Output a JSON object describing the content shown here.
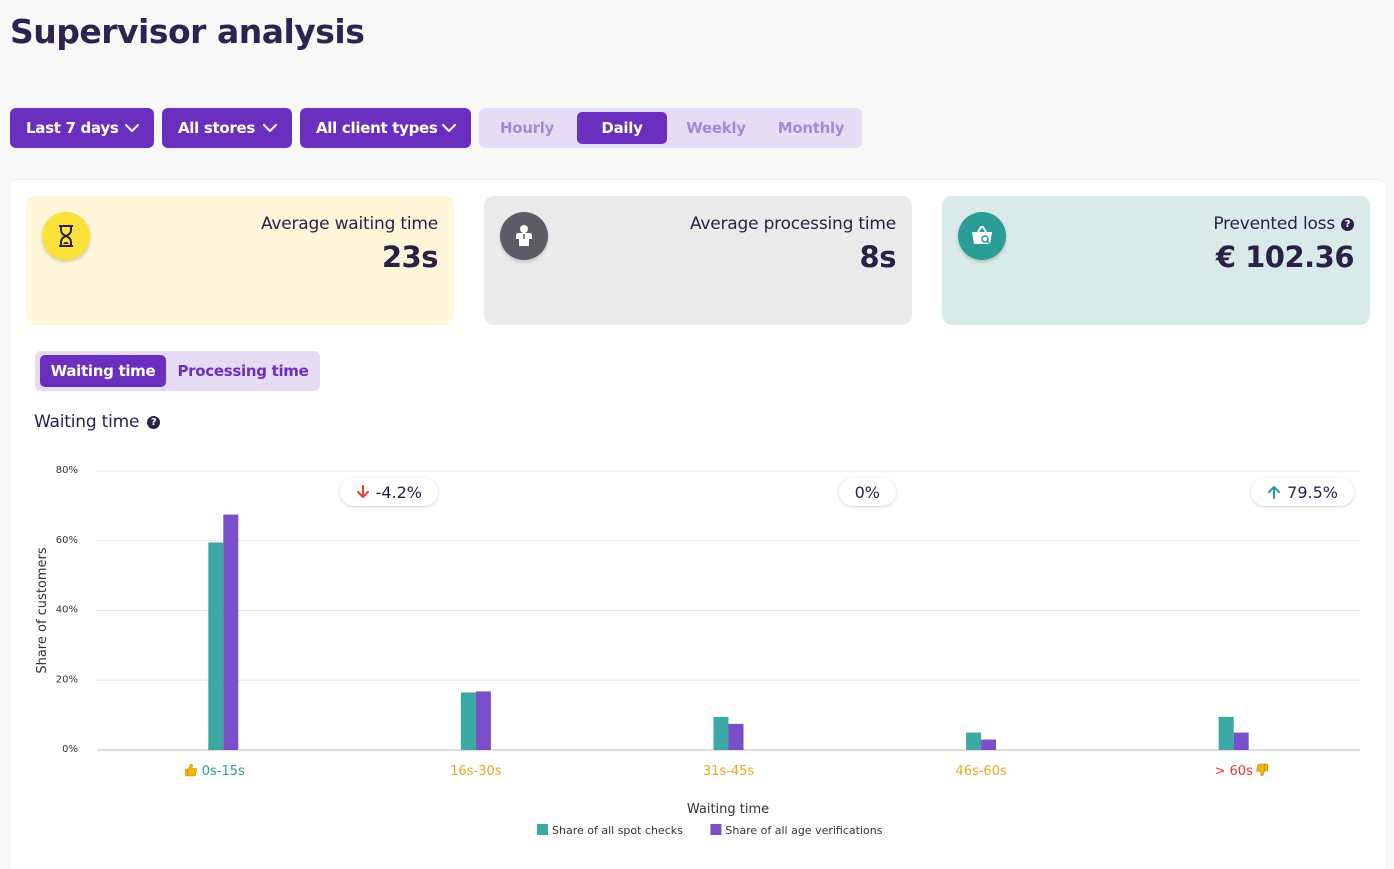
{
  "page": {
    "title": "Supervisor analysis"
  },
  "filters": {
    "date_range": "Last 7 days",
    "stores": "All stores",
    "client_types": "All client types"
  },
  "periods": {
    "hourly": "Hourly",
    "daily": "Daily",
    "weekly": "Weekly",
    "monthly": "Monthly",
    "selected": "Daily"
  },
  "cards": {
    "waiting": {
      "label": "Average waiting time",
      "value": "23s",
      "change": "-4.2%",
      "trend": "down",
      "icon": "hourglass-icon",
      "bg": "#fdf6d8",
      "icon_bg": "#fbe23a"
    },
    "processing": {
      "label": "Average processing time",
      "value": "8s",
      "change": "0%",
      "trend": "none",
      "icon": "person-icon",
      "bg": "#ebebeb",
      "icon_bg": "#5e5a66"
    },
    "loss": {
      "label": "Prevented loss",
      "value": "€ 102.36",
      "change": "79.5%",
      "trend": "up",
      "icon": "basket-icon",
      "bg": "#d8ebe8",
      "icon_bg": "#2a9d97"
    }
  },
  "metric_tabs": {
    "waiting": "Waiting time",
    "processing": "Processing time",
    "selected": "Waiting time"
  },
  "chart_section": {
    "title": "Waiting time"
  },
  "colors": {
    "accent": "#6a2fbf",
    "teal": "#3aa8a3",
    "purple": "#7b4fc9",
    "down": "#e53935",
    "up": "#2a9d97"
  },
  "chart_data": {
    "type": "bar",
    "title": "Waiting time",
    "categories": [
      "0s-15s",
      "16s-30s",
      "31s-45s",
      "46s-60s",
      "> 60s"
    ],
    "category_colors": [
      "#2a9d97",
      "#e8a824",
      "#e8a824",
      "#e8a824",
      "#e53935"
    ],
    "category_icons": [
      "thumbs-up-icon",
      "",
      "",
      "",
      "thumbs-down-icon"
    ],
    "series": [
      {
        "name": "Share of all spot checks",
        "color": "#3aa8a3",
        "values": [
          59.5,
          16.5,
          9.5,
          5,
          9.5
        ]
      },
      {
        "name": "Share of all age verifications",
        "color": "#7b4fc9",
        "values": [
          67.5,
          16.8,
          7.5,
          3,
          5
        ]
      }
    ],
    "xlabel": "Waiting time",
    "ylabel": "Share of customers",
    "ylim": [
      0,
      80
    ],
    "yticks": [
      "0%",
      "20%",
      "40%",
      "60%",
      "80%"
    ],
    "grid": true,
    "legend": "bottom-center"
  }
}
